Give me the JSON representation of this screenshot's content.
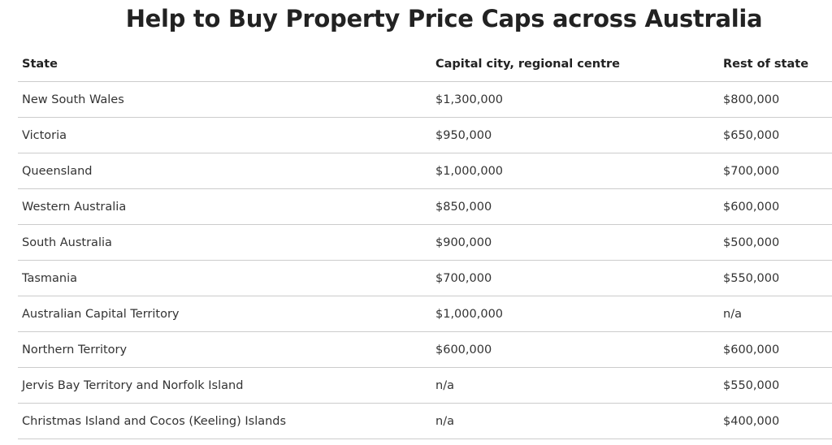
{
  "title": "Help to Buy Property Price Caps across Australia",
  "table": {
    "columns": [
      "State",
      "Capital city, regional centre",
      "Rest of state"
    ],
    "rows": [
      [
        "New South Wales",
        "$1,300,000",
        "$800,000"
      ],
      [
        "Victoria",
        "$950,000",
        "$650,000"
      ],
      [
        "Queensland",
        "$1,000,000",
        "$700,000"
      ],
      [
        "Western Australia",
        "$850,000",
        "$600,000"
      ],
      [
        "South Australia",
        "$900,000",
        "$500,000"
      ],
      [
        "Tasmania",
        "$700,000",
        "$550,000"
      ],
      [
        "Australian Capital Territory",
        "$1,000,000",
        "n/a"
      ],
      [
        "Northern Territory",
        "$600,000",
        "$600,000"
      ],
      [
        "Jervis Bay Territory and Norfolk Island",
        "n/a",
        "$550,000"
      ],
      [
        "Christmas Island and Cocos (Keeling) Islands",
        "n/a",
        "$400,000"
      ]
    ]
  }
}
